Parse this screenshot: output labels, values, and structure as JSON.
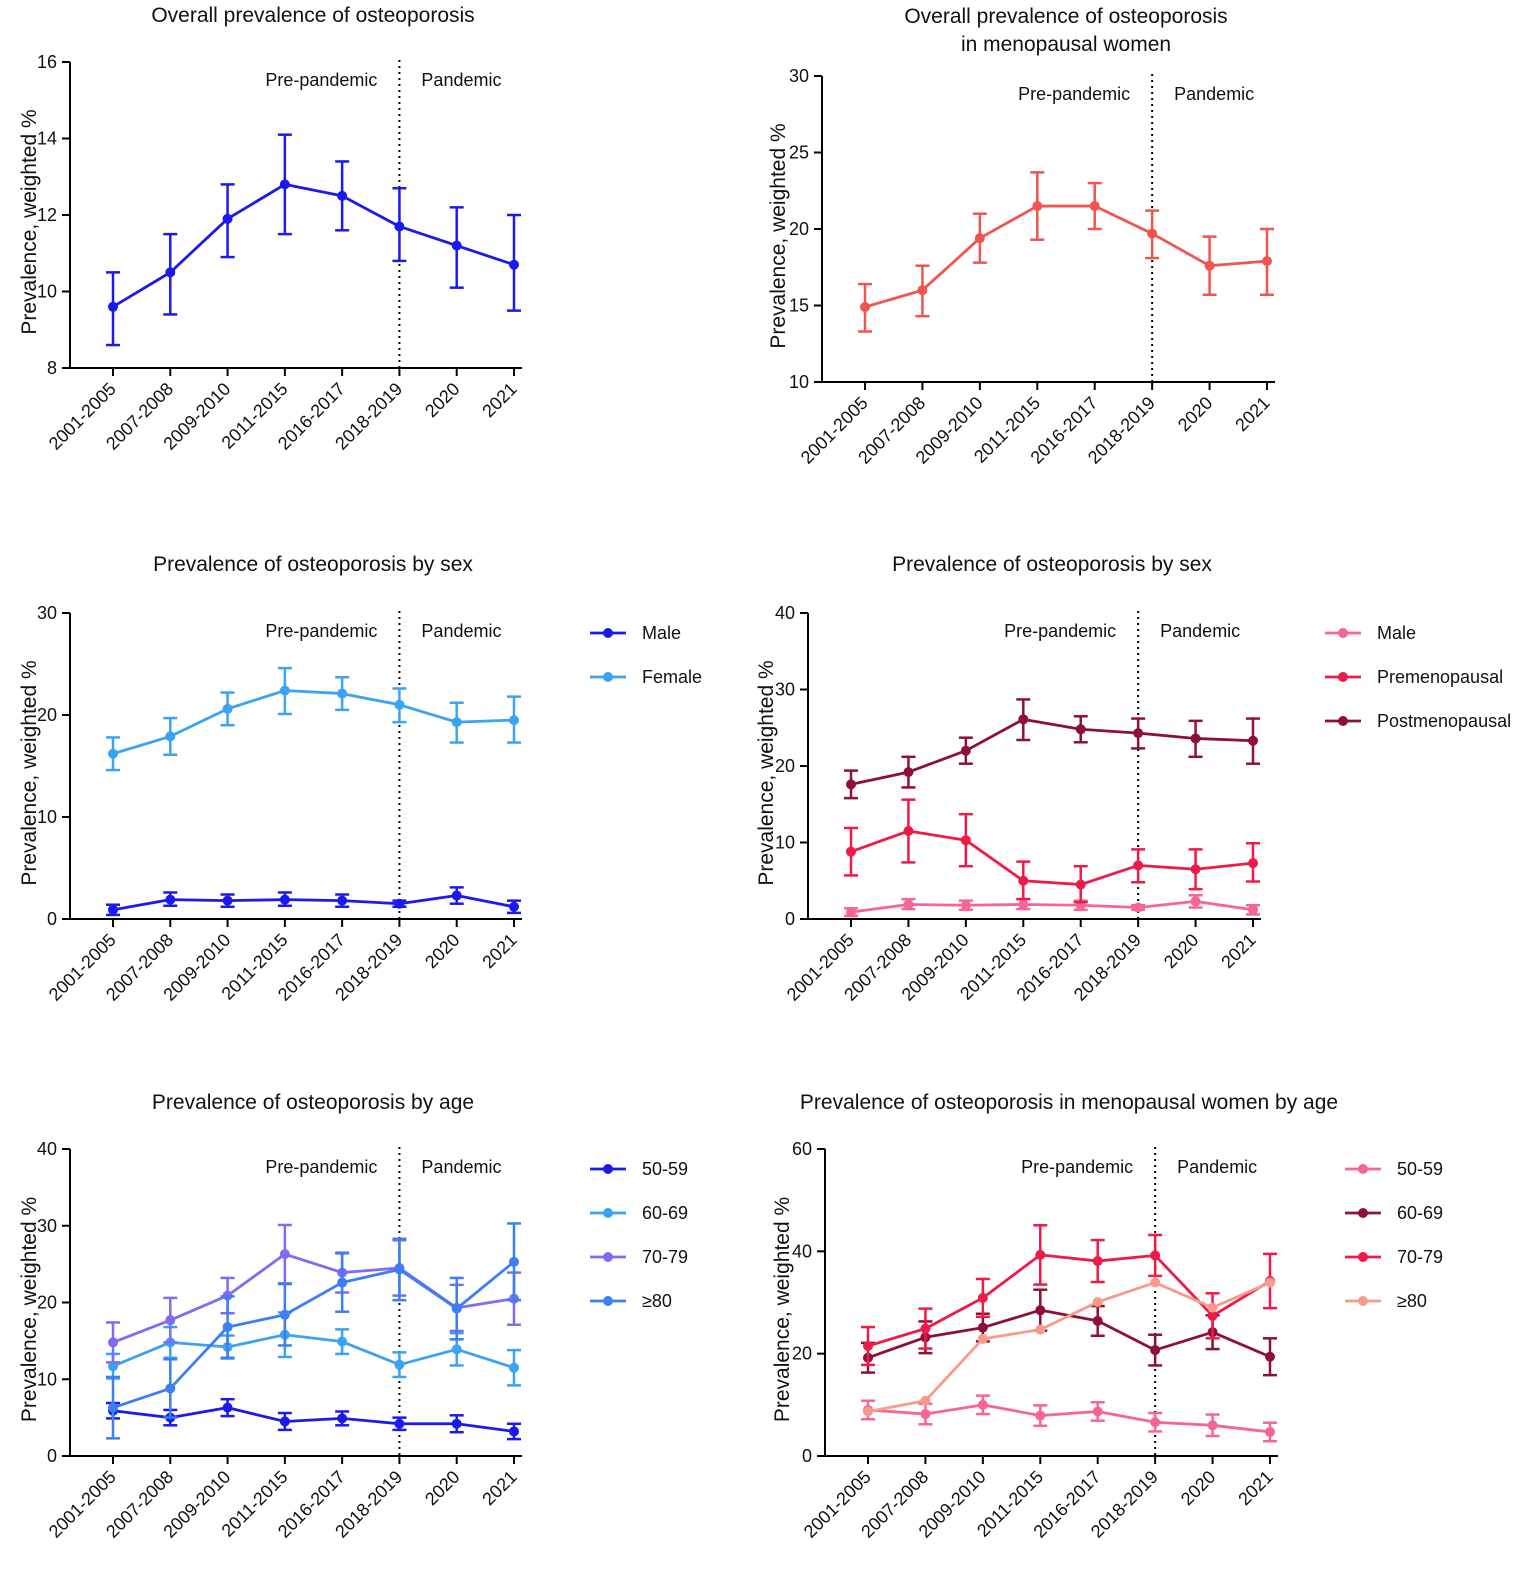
{
  "figure": {
    "y_axis_label": "Prevalence, weighted %",
    "era_labels": {
      "pre": "Pre-pandemic",
      "post": "Pandemic"
    },
    "periods": [
      "2001-2005",
      "2007-2008",
      "2009-2010",
      "2011-2015",
      "2016-2017",
      "2018-2019",
      "2020",
      "2021"
    ]
  },
  "chart_data": [
    {
      "id": "A",
      "type": "line",
      "title": [
        "Overall prevalence of osteoporosis"
      ],
      "xlabel": "",
      "ylabel": "Prevalence, weighted %",
      "categories": [
        "2001-2005",
        "2007-2008",
        "2009-2010",
        "2011-2015",
        "2016-2017",
        "2018-2019",
        "2020",
        "2021"
      ],
      "ylim": [
        8,
        16
      ],
      "yticks": [
        8,
        10,
        12,
        14,
        16
      ],
      "pandemic_divider_after": "2018-2019",
      "legend": "none",
      "series": [
        {
          "name": "Overall",
          "color": "#1a1aee",
          "values": [
            9.6,
            10.5,
            11.9,
            12.8,
            12.5,
            11.7,
            11.2,
            10.7
          ],
          "lower": [
            8.6,
            9.4,
            10.9,
            11.5,
            11.6,
            10.8,
            10.1,
            9.5
          ],
          "upper": [
            10.5,
            11.5,
            12.8,
            14.1,
            13.4,
            12.7,
            12.2,
            12.0
          ]
        }
      ]
    },
    {
      "id": "B",
      "type": "line",
      "title": [
        "Overall prevalence of osteoporosis",
        "in menopausal women"
      ],
      "xlabel": "",
      "ylabel": "Prevalence, weighted %",
      "categories": [
        "2001-2005",
        "2007-2008",
        "2009-2010",
        "2011-2015",
        "2016-2017",
        "2018-2019",
        "2020",
        "2021"
      ],
      "ylim": [
        10,
        30
      ],
      "yticks": [
        10,
        15,
        20,
        25,
        30
      ],
      "pandemic_divider_after": "2018-2019",
      "legend": "none",
      "series": [
        {
          "name": "Menopausal women",
          "color": "#f0554f",
          "values": [
            14.9,
            16.0,
            19.4,
            21.5,
            21.5,
            19.7,
            17.6,
            17.9
          ],
          "lower": [
            13.3,
            14.3,
            17.8,
            19.3,
            20.0,
            18.1,
            15.7,
            15.7
          ],
          "upper": [
            16.4,
            17.6,
            21.0,
            23.7,
            23.0,
            21.2,
            19.5,
            20.0
          ]
        }
      ]
    },
    {
      "id": "C",
      "type": "line",
      "title": [
        "Prevalence of osteoporosis by sex"
      ],
      "xlabel": "",
      "ylabel": "Prevalence, weighted %",
      "categories": [
        "2001-2005",
        "2007-2008",
        "2009-2010",
        "2011-2015",
        "2016-2017",
        "2018-2019",
        "2020",
        "2021"
      ],
      "ylim": [
        0,
        30
      ],
      "yticks": [
        0,
        10,
        20,
        30
      ],
      "pandemic_divider_after": "2018-2019",
      "legend": "right",
      "series": [
        {
          "name": "Male",
          "color": "#1a1aee",
          "values": [
            0.9,
            1.9,
            1.8,
            1.9,
            1.8,
            1.5,
            2.3,
            1.2
          ],
          "lower": [
            0.4,
            1.3,
            1.2,
            1.3,
            1.2,
            1.2,
            1.5,
            0.6
          ],
          "upper": [
            1.4,
            2.6,
            2.4,
            2.6,
            2.4,
            1.8,
            3.1,
            1.8
          ]
        },
        {
          "name": "Female",
          "color": "#3aa3f2",
          "values": [
            16.2,
            17.9,
            20.6,
            22.4,
            22.1,
            21.0,
            19.3,
            19.5
          ],
          "lower": [
            14.6,
            16.1,
            19.0,
            20.1,
            20.5,
            19.3,
            17.3,
            17.3
          ],
          "upper": [
            17.8,
            19.7,
            22.2,
            24.6,
            23.7,
            22.6,
            21.2,
            21.8
          ]
        }
      ]
    },
    {
      "id": "D",
      "type": "line",
      "title": [
        "Prevalence of osteoporosis by sex"
      ],
      "xlabel": "",
      "ylabel": "Prevalence, weighted %",
      "categories": [
        "2001-2005",
        "2007-2008",
        "2009-2010",
        "2011-2015",
        "2016-2017",
        "2018-2019",
        "2020",
        "2021"
      ],
      "ylim": [
        0,
        40
      ],
      "yticks": [
        0,
        10,
        20,
        30,
        40
      ],
      "pandemic_divider_after": "2018-2019",
      "legend": "right",
      "series": [
        {
          "name": "Male",
          "color": "#f5659a",
          "values": [
            0.9,
            1.9,
            1.8,
            1.9,
            1.8,
            1.5,
            2.3,
            1.2
          ],
          "lower": [
            0.4,
            1.3,
            1.2,
            1.3,
            1.2,
            1.2,
            1.5,
            0.6
          ],
          "upper": [
            1.4,
            2.6,
            2.4,
            2.6,
            2.4,
            1.8,
            3.1,
            1.8
          ]
        },
        {
          "name": "Premenopausal",
          "color": "#ee1a48",
          "values": [
            8.8,
            11.5,
            10.3,
            5.0,
            4.5,
            7.0,
            6.5,
            7.3
          ],
          "lower": [
            5.7,
            7.4,
            6.9,
            2.6,
            2.2,
            4.8,
            3.9,
            4.9
          ],
          "upper": [
            11.9,
            15.6,
            13.7,
            7.5,
            6.9,
            9.1,
            9.1,
            9.9
          ]
        },
        {
          "name": "Postmenopausal",
          "color": "#8e1038",
          "values": [
            17.6,
            19.2,
            22.0,
            26.1,
            24.8,
            24.3,
            23.6,
            23.3
          ],
          "lower": [
            15.8,
            17.2,
            20.3,
            23.4,
            23.1,
            22.3,
            21.2,
            20.3
          ],
          "upper": [
            19.4,
            21.2,
            23.7,
            28.7,
            26.5,
            26.2,
            25.9,
            26.2
          ]
        }
      ]
    },
    {
      "id": "E",
      "type": "line",
      "title": [
        "Prevalence of osteoporosis by age"
      ],
      "xlabel": "",
      "ylabel": "Prevalence, weighted %",
      "categories": [
        "2001-2005",
        "2007-2008",
        "2009-2010",
        "2011-2015",
        "2016-2017",
        "2018-2019",
        "2020",
        "2021"
      ],
      "ylim": [
        0,
        40
      ],
      "yticks": [
        0,
        10,
        20,
        30,
        40
      ],
      "pandemic_divider_after": "2018-2019",
      "legend": "right",
      "series": [
        {
          "name": "50-59",
          "color": "#1a1aee",
          "values": [
            5.9,
            5.0,
            6.3,
            4.5,
            4.9,
            4.2,
            4.2,
            3.2
          ],
          "lower": [
            4.9,
            4.0,
            5.2,
            3.4,
            4.0,
            3.4,
            3.1,
            2.2
          ],
          "upper": [
            6.9,
            6.0,
            7.4,
            5.6,
            5.8,
            5.0,
            5.3,
            4.2
          ]
        },
        {
          "name": "60-69",
          "color": "#3aa3f2",
          "values": [
            11.7,
            14.8,
            14.2,
            15.8,
            14.9,
            11.9,
            13.9,
            11.5
          ],
          "lower": [
            10.1,
            12.8,
            12.7,
            12.9,
            13.3,
            10.3,
            11.8,
            9.2
          ],
          "upper": [
            13.3,
            16.8,
            15.7,
            18.7,
            16.5,
            13.5,
            16.0,
            13.8
          ]
        },
        {
          "name": "70-79",
          "color": "#7e6df2",
          "values": [
            14.8,
            17.7,
            20.9,
            26.3,
            23.9,
            24.5,
            19.3,
            20.5
          ],
          "lower": [
            12.2,
            14.8,
            18.6,
            22.5,
            21.3,
            20.9,
            16.3,
            17.1
          ],
          "upper": [
            17.4,
            20.6,
            23.2,
            30.1,
            26.5,
            28.1,
            22.3,
            23.9
          ]
        },
        {
          "name": "≥80",
          "color": "#3d7ef0",
          "values": [
            6.3,
            8.8,
            16.8,
            18.4,
            22.6,
            24.3,
            19.2,
            25.3
          ],
          "lower": [
            2.3,
            5.0,
            12.8,
            14.4,
            18.8,
            20.3,
            15.2,
            20.3
          ],
          "upper": [
            10.3,
            12.6,
            20.8,
            22.4,
            26.4,
            28.3,
            23.2,
            30.3
          ]
        }
      ]
    },
    {
      "id": "F",
      "type": "line",
      "title": [
        "Prevalence of osteoporosis in menopausal women by age"
      ],
      "xlabel": "",
      "ylabel": "Prevalence, weighted %",
      "categories": [
        "2001-2005",
        "2007-2008",
        "2009-2010",
        "2011-2015",
        "2016-2017",
        "2018-2019",
        "2020",
        "2021"
      ],
      "ylim": [
        0,
        60
      ],
      "yticks": [
        0,
        20,
        40,
        60
      ],
      "pandemic_divider_after": "2018-2019",
      "legend": "right",
      "series": [
        {
          "name": "50-59",
          "color": "#f5659a",
          "values": [
            9.0,
            8.2,
            10.0,
            7.9,
            8.7,
            6.6,
            6.0,
            4.7
          ],
          "lower": [
            7.2,
            6.2,
            8.2,
            5.9,
            6.9,
            4.8,
            3.9,
            2.9
          ],
          "upper": [
            10.8,
            10.2,
            11.8,
            9.9,
            10.5,
            8.4,
            8.1,
            6.5
          ]
        },
        {
          "name": "60-69",
          "color": "#8e1038",
          "values": [
            19.2,
            23.2,
            25.1,
            28.5,
            26.4,
            20.7,
            24.2,
            19.4
          ],
          "lower": [
            16.3,
            20.1,
            22.4,
            24.5,
            23.5,
            17.7,
            20.9,
            15.8
          ],
          "upper": [
            22.1,
            26.3,
            27.8,
            32.5,
            29.3,
            23.7,
            27.5,
            23.0
          ]
        },
        {
          "name": "70-79",
          "color": "#ee1a48",
          "values": [
            21.5,
            24.9,
            30.9,
            39.3,
            38.1,
            39.2,
            27.4,
            34.2
          ],
          "lower": [
            17.8,
            21.0,
            27.2,
            33.5,
            34.0,
            35.2,
            23.0,
            28.9
          ],
          "upper": [
            25.2,
            28.8,
            34.6,
            45.1,
            42.2,
            43.2,
            31.8,
            39.5
          ]
        },
        {
          "name": "≥80",
          "color": "#f69a8c",
          "values": [
            8.7,
            10.8,
            22.9,
            24.7,
            30.1,
            33.9,
            29.0,
            33.9
          ],
          "lower": [
            8.7,
            10.8,
            22.9,
            24.7,
            30.1,
            33.9,
            29.0,
            33.9
          ],
          "upper": [
            8.7,
            10.8,
            22.9,
            24.7,
            30.1,
            33.9,
            29.0,
            33.9
          ]
        }
      ]
    }
  ]
}
